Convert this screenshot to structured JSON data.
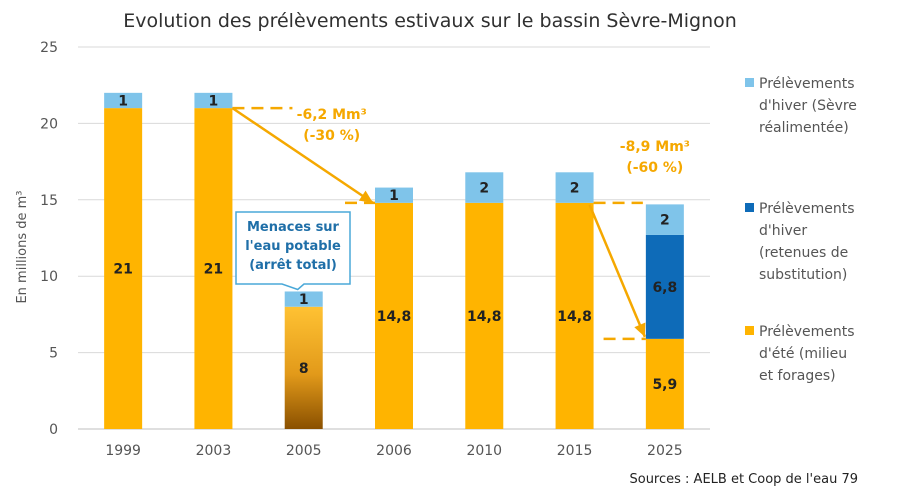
{
  "chart_data": {
    "type": "bar",
    "stacked": true,
    "title": "Evolution des prélèvements estivaux sur le bassin Sèvre-Mignon",
    "ylabel": "En millions de m³",
    "xlabel": "",
    "ylim": [
      0,
      25
    ],
    "yticks": [
      0,
      5,
      10,
      15,
      20,
      25
    ],
    "grid": true,
    "legend_position": "right",
    "categories": [
      "1999",
      "2003",
      "2005",
      "2006",
      "2010",
      "2015",
      "2025"
    ],
    "series": [
      {
        "name": "Prélèvements d'été (milieu et forages)",
        "values": [
          21,
          21,
          8,
          14.8,
          14.8,
          14.8,
          5.9
        ],
        "labels": [
          "21",
          "21",
          "8",
          "14,8",
          "14,8",
          "14,8",
          "5,9"
        ],
        "color": "#FFB400"
      },
      {
        "name": "Prélèvements d'hiver (retenues de substitution)",
        "values": [
          0,
          0,
          0,
          0,
          0,
          0,
          6.8
        ],
        "labels": [
          "",
          "",
          "",
          "",
          "",
          "",
          "6,8"
        ],
        "color": "#0E6BB8"
      },
      {
        "name": "Prélèvements d'hiver (Sèvre réalimentée)",
        "values": [
          1,
          1,
          1,
          1,
          2,
          2,
          2
        ],
        "labels": [
          "1",
          "1",
          "1",
          "1",
          "2",
          "2",
          "2"
        ],
        "color": "#7FC4EA"
      }
    ],
    "legend": [
      {
        "lines": [
          "Prélèvements",
          "d'hiver (Sèvre",
          "réalimentée)"
        ],
        "color": "#7FC4EA"
      },
      {
        "lines": [
          "Prélèvements",
          "d'hiver",
          "(retenues de",
          "substitution)"
        ],
        "color": "#0E6BB8"
      },
      {
        "lines": [
          "Prélèvements",
          "d'été (milieu",
          "et forages)"
        ],
        "color": "#FFB400"
      }
    ],
    "annotations": [
      {
        "lines": [
          "-6,2 Mm³",
          "(-30 %)"
        ],
        "from": "2003",
        "to": "2006"
      },
      {
        "lines": [
          "-8,9 Mm³",
          "(-60 %)"
        ],
        "from": "2015",
        "to": "2025"
      }
    ],
    "callout": {
      "lines": [
        "Menaces sur",
        "l'eau potable",
        "(arrêt total)"
      ],
      "target": "2005"
    },
    "source": "Sources : AELB et Coop de l'eau 79",
    "colors": {
      "accent": "#F5A800",
      "callout_border": "#4AA8D8",
      "grid": "#D9D9D9"
    }
  }
}
